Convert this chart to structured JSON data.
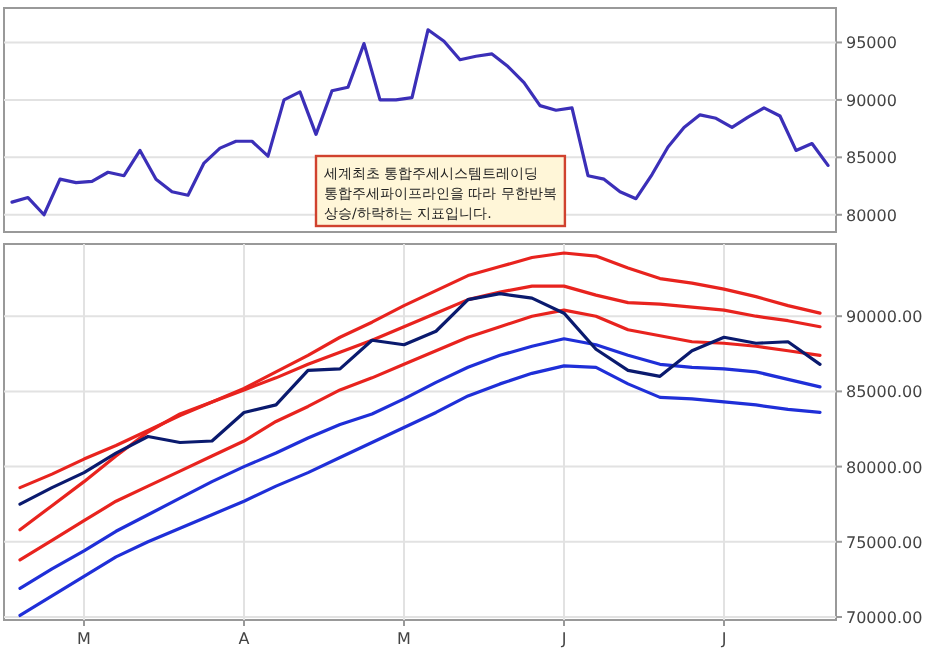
{
  "chart_data": [
    {
      "type": "line",
      "ylim": [
        78500,
        98000
      ],
      "yticks": [
        80000,
        85000,
        90000,
        95000
      ],
      "grid": true,
      "tick_labels": "y",
      "categories": [
        null,
        null,
        null,
        null,
        null,
        null,
        null,
        null,
        null,
        null,
        null,
        null,
        null,
        null,
        null,
        null,
        null,
        null,
        null,
        null,
        null,
        null,
        null,
        null,
        null,
        null,
        null,
        null,
        null,
        null,
        null,
        null,
        null,
        null,
        null,
        null,
        null,
        null,
        null,
        null,
        null,
        null,
        null,
        null,
        null,
        null,
        null,
        null,
        null,
        null,
        null,
        null
      ],
      "annotations": [
        "세계최초 통합주세시스템트레이딩\n통합주세파이프라인을 따라 무한반복\n상승/하락하는 지표입니다."
      ],
      "series": [
        {
          "color": "#3b2fb8",
          "values": [
            81100,
            81500,
            80000,
            83100,
            82800,
            82900,
            83700,
            83400,
            85600,
            83100,
            82000,
            81700,
            84500,
            85800,
            86400,
            86400,
            85100,
            90000,
            90700,
            87000,
            90800,
            91100,
            94900,
            90000,
            90000,
            90200,
            96100,
            95100,
            93500,
            93800,
            94000,
            92900,
            91500,
            89500,
            89100,
            89300,
            83400,
            83100,
            82000,
            81400,
            83500,
            85900,
            87600,
            88700,
            88400,
            87600,
            88500,
            89300,
            88600,
            85600,
            86200,
            84300
          ]
        }
      ]
    },
    {
      "type": "line",
      "ylim": [
        69800,
        94800
      ],
      "categories": [
        null,
        null,
        "M",
        null,
        null,
        null,
        null,
        "A",
        null,
        null,
        null,
        null,
        "M",
        null,
        null,
        null,
        null,
        "J",
        null,
        null,
        null,
        null,
        "J",
        null,
        null,
        null
      ],
      "yticks": [
        {
          "value": 70000,
          "label": "70000.00"
        },
        {
          "value": 75000,
          "label": "75000.00"
        },
        {
          "value": 80000,
          "label": "80000.00"
        },
        {
          "value": 85000,
          "label": "85000.00"
        },
        {
          "value": 90000,
          "label": "90000.00"
        }
      ],
      "grid": true,
      "series": [
        {
          "color": "#e8231e",
          "values": [
            78600,
            79500,
            80500,
            81400,
            82400,
            83400,
            84300,
            85200,
            86300,
            87400,
            88600,
            89600,
            90700,
            91700,
            92700,
            93300,
            93900,
            94200,
            94000,
            93200,
            92500,
            92200,
            91800,
            91300,
            90700,
            90200
          ]
        },
        {
          "color": "#e8231e",
          "values": [
            75800,
            77400,
            79000,
            80700,
            82300,
            83500,
            84300,
            85100,
            85900,
            86800,
            87600,
            88400,
            89300,
            90200,
            91100,
            91600,
            92000,
            92000,
            91400,
            90900,
            90800,
            90600,
            90400,
            90000,
            89700,
            89300
          ]
        },
        {
          "color": "#e8231e",
          "values": [
            73800,
            75100,
            76400,
            77700,
            78700,
            79700,
            80700,
            81700,
            83000,
            84000,
            85100,
            85900,
            86800,
            87700,
            88600,
            89300,
            90000,
            90400,
            90000,
            89100,
            88700,
            88300,
            88200,
            88000,
            87700,
            87400
          ]
        },
        {
          "color": "#1f2fd8",
          "values": [
            71900,
            73200,
            74400,
            75700,
            76800,
            77900,
            79000,
            80000,
            80900,
            81900,
            82800,
            83500,
            84500,
            85600,
            86600,
            87400,
            88000,
            88500,
            88100,
            87400,
            86800,
            86600,
            86500,
            86300,
            85800,
            85300
          ]
        },
        {
          "color": "#1f2fd8",
          "values": [
            70100,
            71400,
            72700,
            74000,
            75000,
            75900,
            76800,
            77700,
            78700,
            79600,
            80600,
            81600,
            82600,
            83600,
            84700,
            85500,
            86200,
            86700,
            86600,
            85500,
            84600,
            84500,
            84300,
            84100,
            83800,
            83600
          ]
        },
        {
          "color": "#0a1a6e",
          "values": [
            77500,
            78600,
            79600,
            80900,
            82000,
            81600,
            81700,
            83600,
            84100,
            86400,
            86500,
            88400,
            88100,
            89000,
            91100,
            91500,
            91200,
            90200,
            87800,
            86400,
            86000,
            87700,
            88600,
            88200,
            88300,
            86800
          ]
        }
      ]
    }
  ]
}
